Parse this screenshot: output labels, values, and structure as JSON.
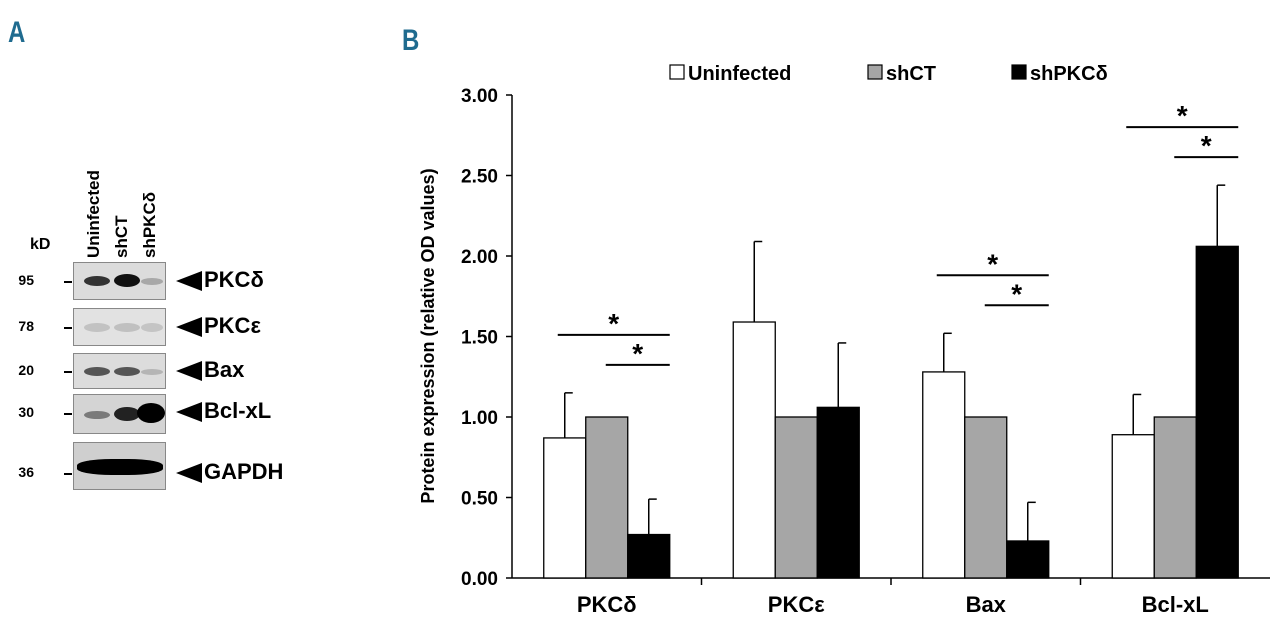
{
  "panel_a": {
    "letter": "A",
    "kd_label": "kD",
    "lanes": [
      "Uninfected",
      "shCT",
      "shPKCδ"
    ],
    "rows": [
      {
        "mw": "95",
        "protein": "PKCδ"
      },
      {
        "mw": "78",
        "protein": "PKCε"
      },
      {
        "mw": "20",
        "protein": "Bax"
      },
      {
        "mw": "30",
        "protein": "Bcl-xL"
      },
      {
        "mw": "36",
        "protein": "GAPDH"
      }
    ]
  },
  "panel_b": {
    "letter": "B"
  },
  "colors": {
    "uninfected": "#ffffff",
    "shct": "#a6a6a6",
    "shpkcd": "#000000",
    "panel_letter": "#1f6b8f"
  },
  "chart_data": {
    "type": "bar",
    "title": "",
    "xlabel": "",
    "ylabel": "Protein expression (relative OD values)",
    "ylim": [
      0,
      3
    ],
    "yticks": [
      "0.00",
      "0.50",
      "1.00",
      "1.50",
      "2.00",
      "2.50",
      "3.00"
    ],
    "categories": [
      "PKCδ",
      "PKCε",
      "Bax",
      "Bcl-xL"
    ],
    "legend_position": "top",
    "series": [
      {
        "name": "Uninfected",
        "values": [
          0.87,
          1.59,
          1.28,
          0.89
        ],
        "errors": [
          0.28,
          0.5,
          0.24,
          0.25
        ]
      },
      {
        "name": "shCT",
        "values": [
          1.0,
          1.0,
          1.0,
          1.0
        ],
        "errors": [
          0,
          0,
          0,
          0
        ]
      },
      {
        "name": "shPKCδ",
        "values": [
          0.27,
          1.06,
          0.23,
          2.06
        ],
        "errors": [
          0.22,
          0.4,
          0.24,
          0.38
        ]
      }
    ],
    "significance": [
      {
        "category": "PKCδ",
        "from": "Uninfected",
        "to": "shPKCδ",
        "label": "*"
      },
      {
        "category": "PKCδ",
        "from": "shCT",
        "to": "shPKCδ",
        "label": "*"
      },
      {
        "category": "Bax",
        "from": "Uninfected",
        "to": "shPKCδ",
        "label": "*"
      },
      {
        "category": "Bax",
        "from": "shCT",
        "to": "shPKCδ",
        "label": "*"
      },
      {
        "category": "Bcl-xL",
        "from": "Uninfected",
        "to": "shPKCδ",
        "label": "*"
      },
      {
        "category": "Bcl-xL",
        "from": "shCT",
        "to": "shPKCδ",
        "label": "*"
      }
    ]
  }
}
